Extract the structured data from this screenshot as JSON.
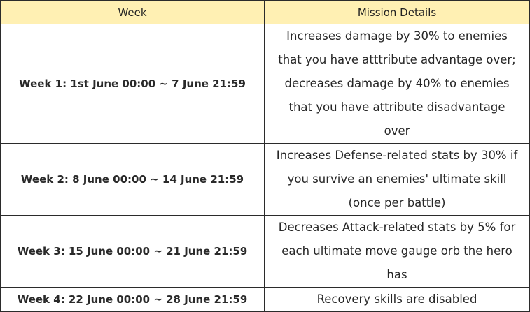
{
  "table": {
    "headers": [
      "Week",
      "Mission Details"
    ],
    "rows": [
      {
        "week": "Week 1: 1st June 00:00 ~ 7 June 21:59",
        "details_lines": [
          "Increases damage by 30% to enemies",
          "that you have atttribute advantage over;",
          "decreases damage by 40% to enemies",
          "that you have attribute disadvantage",
          "over"
        ]
      },
      {
        "week": "Week 2: 8 June 00:00 ~ 14 June 21:59",
        "details_lines": [
          "Increases Defense-related stats by 30% if",
          "you survive an enemies' ultimate skill",
          "(once per battle)"
        ]
      },
      {
        "week": "Week 3: 15 June 00:00 ~ 21 June 21:59",
        "details_lines": [
          "Decreases Attack-related stats by 5% for",
          "each ultimate move gauge orb the hero",
          "has"
        ]
      },
      {
        "week": "Week 4: 22 June 00:00 ~ 28 June 21:59",
        "details_lines": [
          "Recovery skills are disabled"
        ]
      }
    ]
  },
  "colors": {
    "header_background": "#fff0b3",
    "border": "#2b2b2b",
    "text": "#1f1f1f"
  }
}
